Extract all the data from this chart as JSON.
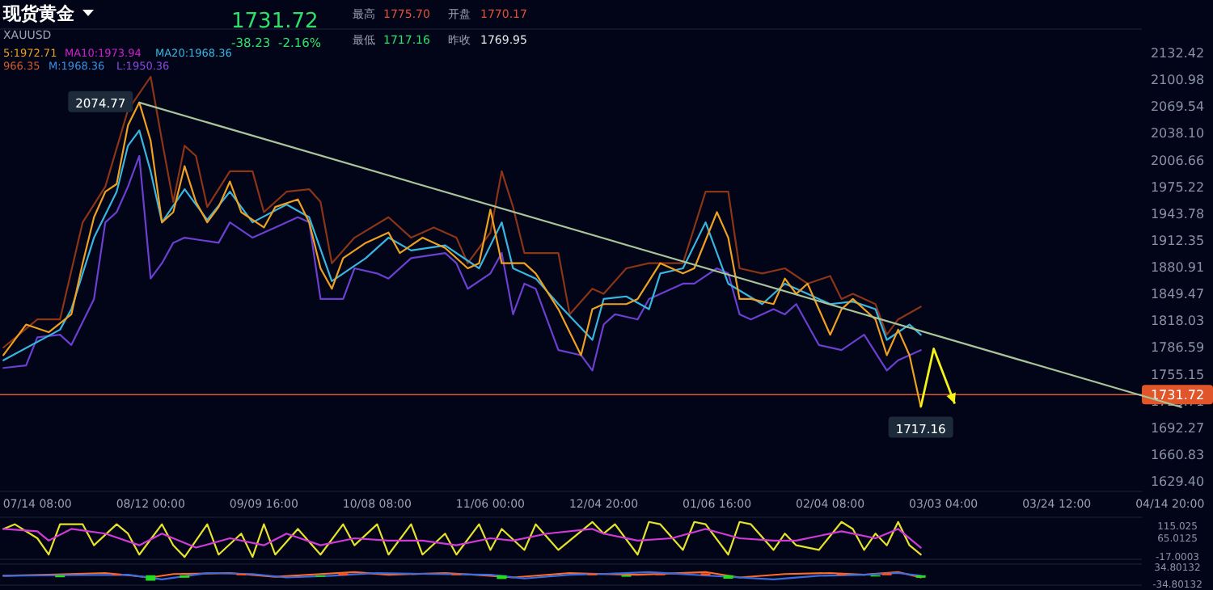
{
  "chart_data": [
    {
      "type": "line",
      "title": "现货黄金",
      "subtitle": "XAUUSD",
      "annotations": [
        "1731.72",
        "-38.23",
        "-2.16%",
        "最高",
        "1775.70",
        "开盘",
        "1770.17",
        "最低",
        "1717.16",
        "昨收",
        "1769.95",
        "5:1972.71",
        "MA10:1973.94",
        "MA20:1968.36",
        "966.35",
        "M:1968.36",
        "L:1950.36",
        {
          "text": "2074.77",
          "y": 2074.77
        },
        {
          "text": "1717.16",
          "y": 1717.16
        }
      ],
      "categories": [
        null,
        null,
        null,
        "07/14 08:00",
        null,
        null,
        null,
        null,
        null,
        null,
        null,
        null,
        null,
        "08/12 00:00",
        null,
        null,
        null,
        null,
        null,
        null,
        null,
        null,
        null,
        "09/09 16:00",
        null,
        null,
        null,
        null,
        null,
        null,
        null,
        null,
        null,
        "10/08 08:00",
        null,
        null,
        null,
        null,
        null,
        null,
        null,
        null,
        null,
        "11/06 00:00",
        null,
        null,
        null,
        null,
        null,
        null,
        null,
        null,
        null,
        "12/04 20:00",
        null,
        null,
        null,
        null,
        null,
        null,
        null,
        null,
        null,
        "01/06 16:00",
        null,
        null,
        null,
        null,
        null,
        null,
        null,
        null,
        null,
        "02/04 08:00",
        null,
        null,
        null,
        null,
        null,
        null,
        null,
        null,
        null,
        "03/03 04:00",
        null,
        null,
        null,
        null,
        null,
        null,
        null,
        null,
        null,
        "03/24 12:00",
        null,
        null,
        null,
        null,
        null,
        null,
        null,
        null,
        null,
        "04/14 20:00",
        null
      ],
      "ylim": [
        1618,
        2161
      ],
      "yticks": [
        2132.42,
        2100.98,
        2069.54,
        {
          "value": 2038.1,
          "label": "2038.10"
        },
        2006.66,
        1975.22,
        1943.78,
        1912.35,
        1880.91,
        1849.47,
        1818.03,
        1786.59,
        1755.15,
        1723.71,
        1692.27,
        1660.83,
        {
          "value": 1629.4,
          "label": "1629.40"
        }
      ],
      "ref_lines": [
        {
          "axis": "y",
          "value": 1731.72,
          "label": "1731.72",
          "color": "#e0562a"
        }
      ],
      "series": [
        {
          "color": "#8b3516",
          "values": [
            1787,
            null,
            null,
            1820,
            null,
            1820,
            null,
            1934,
            null,
            1976,
            null,
            2066,
            null,
            2105,
            2030,
            1958,
            2024,
            2012,
            1952,
            null,
            1994,
            null,
            1994,
            1946,
            null,
            1970,
            null,
            1973,
            1958,
            1886,
            null,
            1916,
            null,
            null,
            1940,
            null,
            1916,
            null,
            1928,
            null,
            1916,
            1886,
            null,
            1922,
            1994,
            1952,
            1898,
            null,
            null,
            1898,
            1826,
            null,
            1856,
            1850,
            null,
            1880,
            null,
            1886,
            null,
            null,
            1886,
            null,
            1970,
            null,
            1970,
            1880,
            null,
            1874,
            null,
            1880,
            null,
            1862,
            null,
            1871,
            1844,
            1850,
            null,
            1838,
            1802,
            1820,
            null,
            1835,
            null,
            null,
            null,
            null,
            null,
            null,
            null,
            null,
            null,
            null,
            null,
            null,
            null,
            null,
            null,
            null,
            null,
            null,
            null,
            null,
            null,
            null,
            null
          ]
        },
        {
          "color": "#6b3fd0",
          "values": [
            1763,
            null,
            1766,
            1799,
            null,
            1802,
            1790,
            null,
            1844,
            1934,
            1946,
            1976,
            2012,
            1868,
            1886,
            1910,
            1916,
            null,
            null,
            1910,
            1934,
            null,
            1916,
            null,
            1928,
            null,
            1940,
            1934,
            1844,
            null,
            1844,
            1880,
            null,
            1874,
            1868,
            null,
            1892,
            null,
            null,
            1898,
            1886,
            1856,
            null,
            1874,
            1898,
            1826,
            1862,
            1856,
            null,
            1784,
            null,
            1778,
            1760,
            1814,
            1826,
            null,
            1820,
            1844,
            null,
            null,
            1862,
            1862,
            null,
            1880,
            1874,
            1826,
            1820,
            null,
            1832,
            1826,
            1838,
            null,
            1790,
            null,
            1784,
            null,
            1802,
            null,
            1760,
            1772,
            null,
            1784,
            null,
            null,
            null,
            null,
            null,
            null,
            null,
            null,
            null,
            null,
            null,
            null,
            null,
            null,
            null,
            null,
            null,
            null,
            null,
            null,
            null,
            null,
            null
          ]
        },
        {
          "color": "#38b6e0",
          "values": [
            1772,
            null,
            null,
            null,
            null,
            1808,
            1832,
            null,
            1916,
            null,
            1970,
            2024,
            2042,
            1994,
            1934,
            null,
            1973,
            null,
            1937,
            null,
            1970,
            null,
            1934,
            null,
            null,
            1955,
            null,
            1940,
            null,
            1865,
            null,
            null,
            1892,
            null,
            1916,
            null,
            1901,
            null,
            null,
            1907,
            null,
            null,
            1880,
            null,
            1934,
            1880,
            null,
            1868,
            null,
            1838,
            null,
            null,
            1796,
            1844,
            null,
            1847,
            null,
            1832,
            1874,
            null,
            1880,
            null,
            1934,
            null,
            1862,
            null,
            null,
            1838,
            null,
            1862,
            null,
            1850,
            null,
            1838,
            null,
            1841,
            null,
            1832,
            1796,
            null,
            1814,
            1802,
            null,
            null,
            null,
            null,
            null,
            null,
            null,
            null,
            null,
            null,
            null,
            null,
            null,
            null,
            null,
            null,
            null,
            null,
            null,
            null,
            null,
            null,
            null
          ]
        },
        {
          "color": "#f0a020",
          "values": [
            1778,
            null,
            1814,
            null,
            1805,
            null,
            1826,
            1886,
            1940,
            1970,
            1979,
            2048,
            2074.77,
            2030,
            1934,
            1946,
            2000,
            1958,
            1934,
            1952,
            1982,
            1946,
            null,
            1928,
            1952,
            null,
            1961,
            1934,
            1880,
            1856,
            1892,
            null,
            1910,
            null,
            1922,
            1898,
            null,
            1916,
            null,
            1904,
            null,
            1880,
            1886,
            1949,
            1886,
            null,
            1886,
            1874,
            null,
            1832,
            null,
            1778,
            1832,
            1838,
            null,
            1838,
            1844,
            null,
            1886,
            null,
            1874,
            1880,
            null,
            1946,
            1916,
            1844,
            1844,
            null,
            1838,
            1868,
            1850,
            1862,
            null,
            1802,
            1832,
            1844,
            null,
            1820,
            1778,
            1808,
            1778,
            1717.16,
            null,
            null,
            null,
            null,
            null,
            null,
            null,
            null,
            null,
            null,
            null,
            null,
            null,
            null,
            null,
            null,
            null,
            null,
            null,
            null,
            null,
            null,
            null
          ]
        },
        {
          "color": "#a8c49a",
          "values": [
            null,
            null,
            null,
            null,
            null,
            null,
            null,
            null,
            null,
            null,
            null,
            null,
            2074.77,
            null,
            null,
            null,
            null,
            null,
            null,
            null,
            null,
            null,
            null,
            null,
            null,
            null,
            null,
            null,
            null,
            null,
            null,
            null,
            null,
            null,
            null,
            null,
            null,
            null,
            null,
            null,
            null,
            null,
            null,
            null,
            null,
            null,
            null,
            null,
            null,
            null,
            null,
            null,
            null,
            null,
            null,
            null,
            null,
            null,
            null,
            null,
            null,
            null,
            null,
            null,
            null,
            null,
            null,
            null,
            null,
            null,
            null,
            null,
            null,
            null,
            null,
            null,
            null,
            null,
            null,
            null,
            null,
            null,
            null,
            null,
            null,
            null,
            null,
            null,
            null,
            null,
            null,
            null,
            null,
            null,
            null,
            null,
            null,
            null,
            null,
            null,
            null,
            null,
            null,
            null,
            1717
          ]
        }
      ]
    },
    {
      "type": "line",
      "tick_labels": "y",
      "ylim": [
        -30,
        150
      ],
      "categories": [
        null,
        null,
        null,
        null,
        null,
        null,
        null,
        null,
        null,
        null,
        null,
        null,
        null,
        null,
        null,
        null,
        null,
        null,
        null,
        null,
        null,
        null,
        null,
        null,
        null,
        null,
        null,
        null,
        null,
        null,
        null,
        null,
        null,
        null,
        null,
        null,
        null,
        null,
        null,
        null,
        null,
        null,
        null,
        null,
        null,
        null,
        null,
        null,
        null,
        null,
        null,
        null,
        null,
        null,
        null,
        null,
        null,
        null,
        null,
        null,
        null,
        null,
        null,
        null,
        null,
        null,
        null,
        null,
        null,
        null,
        null,
        null,
        null,
        null,
        null,
        null,
        null,
        null,
        null,
        null,
        null,
        null,
        null,
        null,
        null,
        null,
        null,
        null,
        null,
        null,
        null,
        null,
        null,
        null,
        null,
        null,
        null,
        null,
        null,
        null,
        null,
        null,
        null,
        null,
        null
      ],
      "yticks": [
        115.025,
        65.0125,
        -17.0003
      ],
      "series": [
        {
          "color": "#e6e22a",
          "values": [
            100,
            120,
            null,
            60,
            -10,
            120,
            null,
            120,
            30,
            null,
            120,
            80,
            -10,
            null,
            120,
            30,
            -20,
            null,
            120,
            -10,
            null,
            80,
            -20,
            120,
            -10,
            null,
            100,
            null,
            -10,
            null,
            120,
            30,
            null,
            120,
            -10,
            null,
            120,
            -10,
            null,
            80,
            -10,
            null,
            120,
            10,
            100,
            null,
            10,
            120,
            null,
            10,
            null,
            null,
            130,
            80,
            120,
            null,
            -10,
            130,
            120,
            null,
            10,
            130,
            120,
            null,
            -10,
            130,
            120,
            null,
            10,
            80,
            30,
            null,
            10,
            null,
            130,
            100,
            10,
            80,
            30,
            130,
            30,
            -10,
            null,
            null,
            null,
            null,
            null,
            null,
            null,
            null,
            null,
            null,
            null,
            null,
            null,
            null,
            null,
            null,
            null,
            null,
            null,
            null,
            null,
            null,
            null
          ]
        },
        {
          "color": "#d23ad6",
          "values": [
            100,
            null,
            null,
            90,
            50,
            null,
            100,
            null,
            null,
            80,
            null,
            null,
            30,
            null,
            80,
            null,
            null,
            20,
            null,
            null,
            60,
            null,
            null,
            30,
            null,
            80,
            null,
            null,
            30,
            null,
            null,
            60,
            null,
            null,
            50,
            null,
            null,
            50,
            null,
            null,
            30,
            null,
            null,
            60,
            null,
            50,
            null,
            null,
            80,
            null,
            null,
            null,
            100,
            80,
            null,
            null,
            50,
            null,
            null,
            60,
            null,
            null,
            100,
            null,
            null,
            60,
            null,
            null,
            50,
            null,
            50,
            null,
            null,
            null,
            90,
            null,
            null,
            60,
            null,
            100,
            null,
            20,
            null,
            null,
            null,
            null,
            null,
            null,
            null,
            null,
            null,
            null,
            null,
            null,
            null,
            null,
            null,
            null,
            null,
            null,
            null,
            null,
            null,
            null,
            null
          ]
        }
      ]
    },
    {
      "type": "bar",
      "tick_labels": "y",
      "ylim": [
        -40,
        45
      ],
      "categories": [
        null,
        null,
        null,
        null,
        null,
        null,
        null,
        null,
        null,
        null,
        null,
        null,
        null,
        null,
        null,
        null,
        null,
        null,
        null,
        null,
        null,
        null,
        null,
        null,
        null,
        null,
        null,
        null,
        null,
        null,
        null,
        null,
        null,
        null,
        null,
        null,
        null,
        null,
        null,
        null,
        null,
        null,
        null,
        null,
        null,
        null,
        null,
        null,
        null,
        null,
        null,
        null,
        null,
        null,
        null,
        null,
        null,
        null,
        null,
        null,
        null,
        null,
        null,
        null,
        null,
        null,
        null,
        null,
        null,
        null,
        null,
        null,
        null,
        null,
        null,
        null,
        null,
        null,
        null,
        null,
        null,
        null,
        null,
        null,
        null,
        null,
        null,
        null,
        null,
        null,
        null,
        null,
        null,
        null,
        null,
        null,
        null,
        null,
        null,
        null,
        null,
        null,
        null,
        null,
        null
      ],
      "yticks": [
        34.80132,
        -34.80132
      ],
      "series": [
        {
          "values": [
            null,
            null,
            null,
            null,
            null,
            -8,
            null,
            null,
            null,
            null,
            6,
            null,
            null,
            -22,
            null,
            null,
            -10,
            null,
            null,
            null,
            null,
            6,
            null,
            null,
            null,
            null,
            null,
            null,
            -6,
            null,
            8,
            null,
            null,
            null,
            null,
            null,
            null,
            null,
            null,
            null,
            5,
            null,
            null,
            null,
            -15,
            null,
            null,
            null,
            null,
            null,
            null,
            null,
            6,
            null,
            null,
            -6,
            null,
            null,
            5,
            null,
            null,
            null,
            8,
            null,
            -14,
            null,
            null,
            null,
            null,
            null,
            null,
            null,
            null,
            null,
            7,
            null,
            null,
            -5,
            8,
            null,
            null,
            -10,
            null,
            null,
            null,
            null,
            null,
            null,
            null,
            null,
            null,
            null,
            null,
            null,
            null,
            null,
            null,
            null,
            null,
            null,
            null,
            null,
            null,
            null,
            null
          ],
          "colors": [
            null,
            null,
            null,
            null,
            null,
            "#22dd22",
            null,
            null,
            null,
            null,
            "#ff5522",
            null,
            null,
            "#22dd22",
            null,
            null,
            "#22dd22",
            null,
            null,
            null,
            null,
            "#ff5522",
            null,
            null,
            null,
            null,
            null,
            null,
            "#22dd22",
            null,
            "#ff5522",
            null,
            null,
            null,
            null,
            null,
            null,
            null,
            null,
            null,
            "#ff5522",
            null,
            null,
            null,
            "#22dd22",
            null,
            null,
            null,
            null,
            null,
            null,
            null,
            "#ff5522",
            null,
            null,
            "#22dd22",
            null,
            null,
            "#ff5522",
            null,
            null,
            null,
            "#ff5522",
            null,
            "#22dd22",
            null,
            null,
            null,
            null,
            null,
            null,
            null,
            null,
            null,
            "#ff5522",
            null,
            null,
            "#22dd22",
            "#ff5522",
            null,
            null,
            "#22dd22",
            null,
            null,
            null,
            null,
            null,
            null,
            null,
            null,
            null,
            null,
            null,
            null,
            null,
            null,
            null,
            null,
            null,
            null,
            null,
            null,
            null,
            null,
            null
          ]
        },
        {
          "type": "line",
          "color": "#ff6a2a",
          "values": [
            -2,
            null,
            null,
            null,
            2,
            null,
            null,
            null,
            null,
            9,
            null,
            null,
            null,
            -9,
            null,
            5,
            null,
            null,
            null,
            null,
            9,
            null,
            null,
            null,
            -6,
            null,
            null,
            null,
            5,
            null,
            null,
            13,
            null,
            null,
            2,
            null,
            null,
            null,
            null,
            9,
            null,
            null,
            null,
            -2,
            null,
            -9,
            null,
            null,
            null,
            null,
            9,
            null,
            null,
            5,
            null,
            null,
            2,
            null,
            null,
            null,
            null,
            null,
            13,
            null,
            null,
            -9,
            null,
            null,
            null,
            5,
            null,
            null,
            null,
            9,
            null,
            null,
            2,
            null,
            null,
            13,
            null,
            -9,
            null,
            null,
            null,
            null,
            null,
            null,
            null,
            null,
            null,
            null,
            null,
            null,
            null,
            null,
            null,
            null,
            null,
            null,
            null,
            null,
            null,
            null,
            null
          ]
        },
        {
          "type": "line",
          "color": "#3a6ee0",
          "values": [
            -2,
            null,
            null,
            null,
            null,
            0,
            null,
            null,
            null,
            null,
            null,
            2,
            null,
            null,
            -17,
            null,
            null,
            null,
            9,
            null,
            null,
            null,
            5,
            null,
            null,
            -9,
            null,
            null,
            null,
            -2,
            null,
            null,
            null,
            9,
            null,
            null,
            null,
            null,
            5,
            null,
            null,
            null,
            null,
            2,
            null,
            null,
            -13,
            null,
            null,
            null,
            2,
            null,
            null,
            5,
            null,
            null,
            null,
            13,
            null,
            null,
            null,
            null,
            null,
            null,
            null,
            -9,
            null,
            null,
            -17,
            null,
            null,
            null,
            -2,
            null,
            null,
            null,
            2,
            null,
            null,
            9,
            null,
            -2,
            null,
            null,
            null,
            null,
            null,
            null,
            null,
            null,
            null,
            null,
            null,
            null,
            null,
            null,
            null,
            null,
            null,
            null,
            null,
            null,
            null,
            null,
            null
          ]
        }
      ]
    }
  ]
}
